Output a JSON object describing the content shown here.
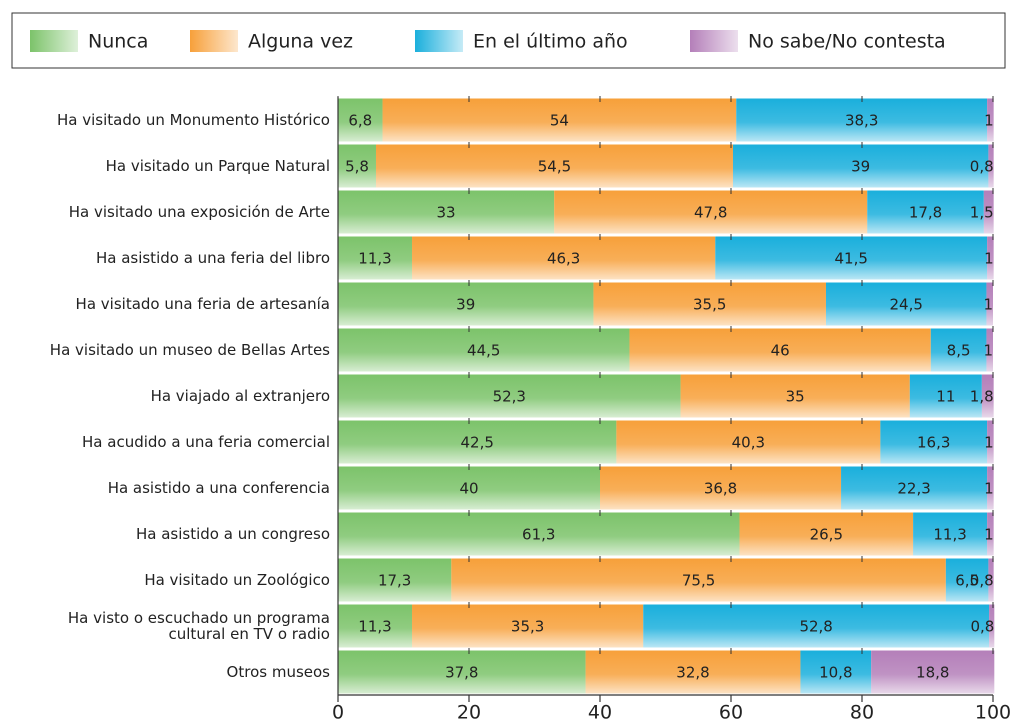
{
  "chart_data": {
    "type": "bar",
    "orientation": "horizontal",
    "stacked": true,
    "categories": [
      "Ha visitado un Monumento Histórico",
      "Ha visitado un Parque Natural",
      "Ha visitado una exposición de Arte",
      "Ha asistido a una feria del libro",
      "Ha visitado una feria de artesanía",
      "Ha visitado un museo de Bellas Artes",
      "Ha viajado al extranjero",
      "Ha acudido a una feria comercial",
      "Ha asistido a una conferencia",
      "Ha asistido a un congreso",
      "Ha visitado un Zoológico",
      "Ha visto o escuchado un programa\ncultural en TV o radio",
      "Otros museos"
    ],
    "series": [
      {
        "name": "Nunca",
        "color": "#7cc36a",
        "values": [
          6.8,
          5.8,
          33,
          11.3,
          39,
          44.5,
          52.3,
          42.5,
          40,
          61.3,
          17.3,
          11.3,
          37.8
        ],
        "value_labels": [
          "6,8",
          "5,8",
          "33",
          "11,3",
          "39",
          "44,5",
          "52,3",
          "42,5",
          "40",
          "61,3",
          "17,3",
          "11,3",
          "37,8"
        ]
      },
      {
        "name": "Alguna vez",
        "color": "#f7a03a",
        "values": [
          54,
          54.5,
          47.8,
          46.3,
          35.5,
          46,
          35,
          40.3,
          36.8,
          26.5,
          75.5,
          35.3,
          32.8
        ],
        "value_labels": [
          "54",
          "54,5",
          "47,8",
          "46,3",
          "35,5",
          "46",
          "35",
          "40,3",
          "36,8",
          "26,5",
          "75,5",
          "35,3",
          "32,8"
        ]
      },
      {
        "name": "En el último año",
        "color": "#1aafdc",
        "values": [
          38.3,
          39,
          17.8,
          41.5,
          24.5,
          8.5,
          11,
          16.3,
          22.3,
          11.3,
          6.5,
          52.8,
          10.8
        ],
        "value_labels": [
          "38,3",
          "39",
          "17,8",
          "41,5",
          "24,5",
          "8,5",
          "11",
          "16,3",
          "22,3",
          "11,3",
          "6,5",
          "52,8",
          "10,8"
        ]
      },
      {
        "name": "No sabe/No contesta",
        "color": "#b47fb9",
        "values": [
          1,
          0.8,
          1.5,
          1,
          1,
          1,
          1.8,
          1,
          1,
          1,
          0.8,
          0.8,
          18.8
        ],
        "value_labels": [
          "1",
          "0,8",
          "1,5",
          "1",
          "1",
          "1",
          "1,8",
          "1",
          "1",
          "1",
          "0,8",
          "0,8",
          "18,8"
        ]
      }
    ],
    "xlim": [
      0,
      100
    ],
    "xticks": [
      0,
      20,
      40,
      60,
      80,
      100
    ],
    "legend": "top"
  }
}
